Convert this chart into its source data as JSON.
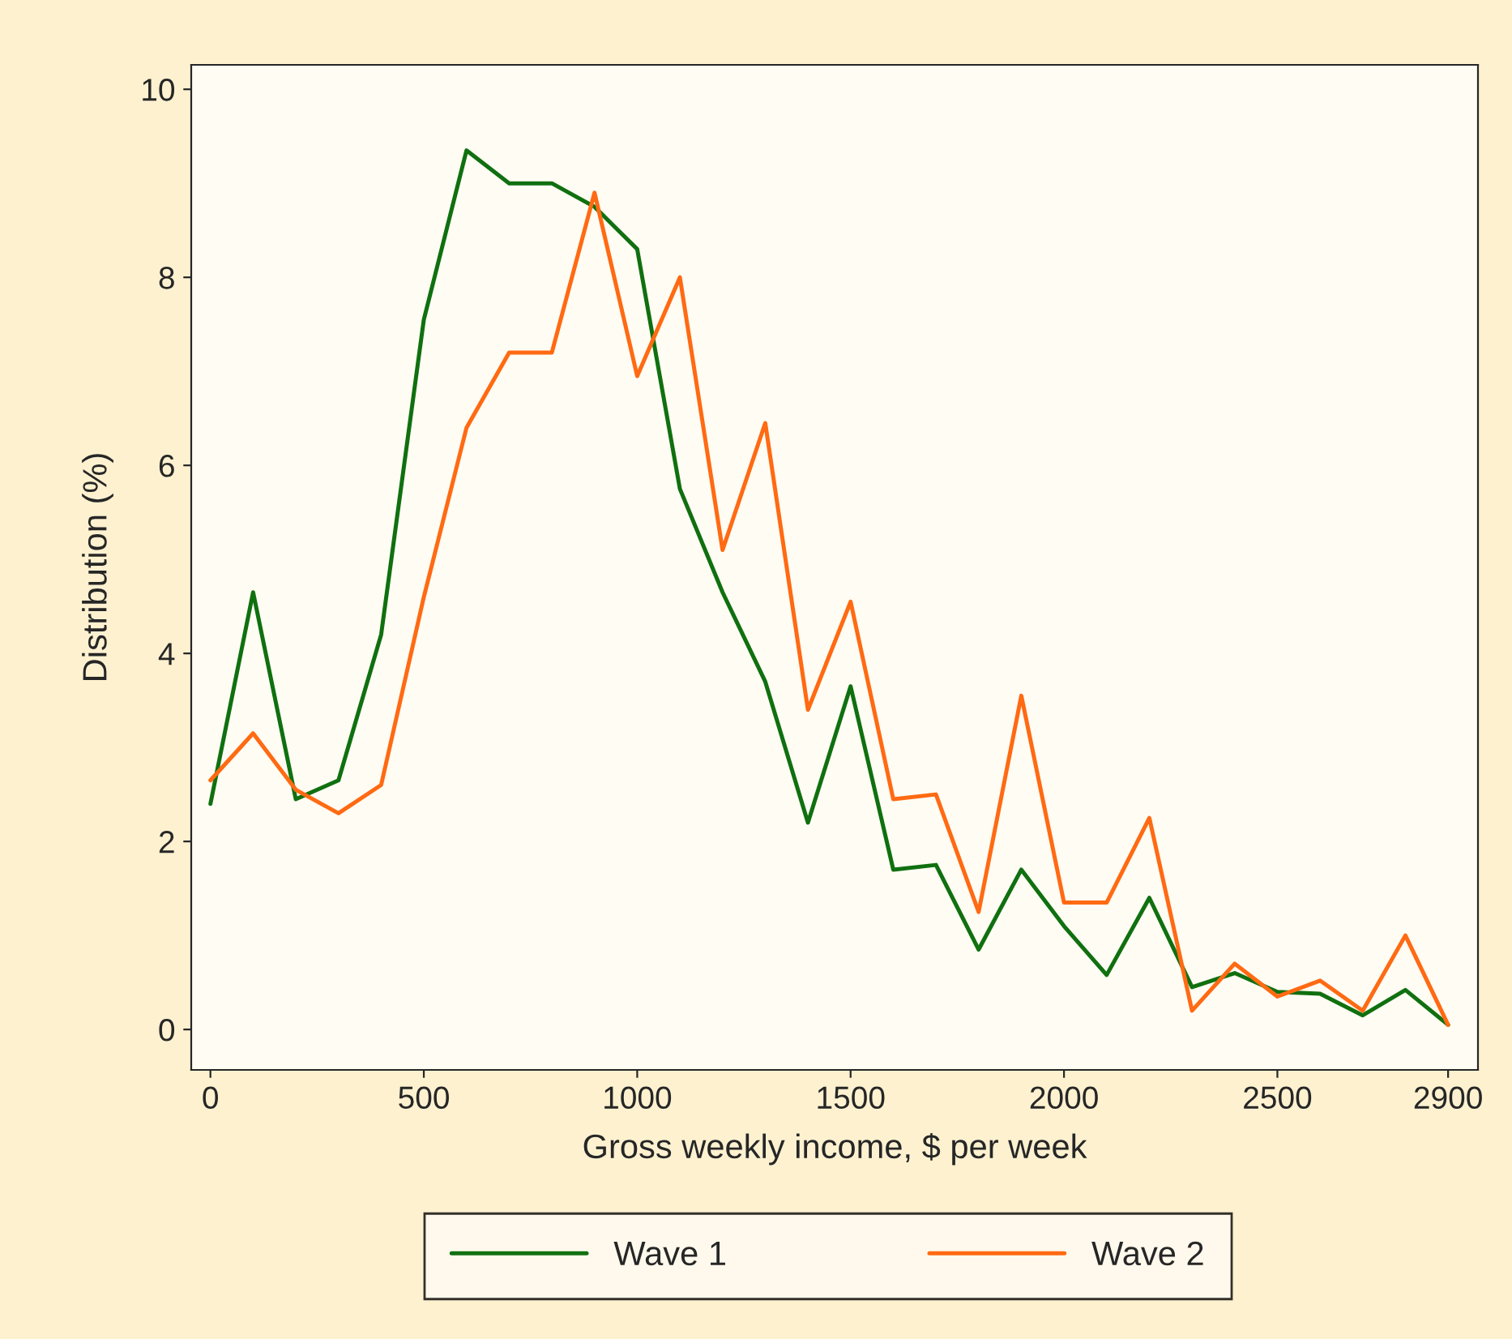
{
  "chart_data": {
    "type": "line",
    "xlabel": "Gross weekly income, $ per week",
    "ylabel": "Distribution (%)",
    "x": [
      0,
      100,
      200,
      300,
      400,
      500,
      600,
      700,
      800,
      900,
      1000,
      1100,
      1200,
      1300,
      1400,
      1500,
      1600,
      1700,
      1800,
      1900,
      2000,
      2100,
      2200,
      2300,
      2400,
      2500,
      2600,
      2700,
      2800,
      2900
    ],
    "series": [
      {
        "name": "Wave 1",
        "color": "#107010",
        "values": [
          2.4,
          4.65,
          2.45,
          2.65,
          4.2,
          7.55,
          9.35,
          9.0,
          9.0,
          8.75,
          8.3,
          5.75,
          4.65,
          3.7,
          2.2,
          3.65,
          1.7,
          1.75,
          0.85,
          1.7,
          1.1,
          0.58,
          1.4,
          0.45,
          0.6,
          0.4,
          0.38,
          0.15,
          0.42,
          0.05
        ]
      },
      {
        "name": "Wave 2",
        "color": "#ff6a13",
        "values": [
          2.65,
          3.15,
          2.55,
          2.3,
          2.6,
          4.6,
          6.4,
          7.2,
          7.2,
          8.9,
          6.95,
          8.0,
          5.1,
          6.45,
          3.4,
          4.55,
          2.45,
          2.5,
          1.25,
          3.55,
          1.35,
          1.35,
          2.25,
          0.2,
          0.7,
          0.35,
          0.52,
          0.2,
          1.0,
          0.05
        ]
      }
    ],
    "xlim": [
      -45,
      2970
    ],
    "ylim": [
      -0.43,
      10.26
    ],
    "xticks": [
      0,
      500,
      1000,
      1500,
      2000,
      2500,
      2900
    ],
    "yticks": [
      0,
      2,
      4,
      6,
      8,
      10
    ],
    "grid": false,
    "legend": "bottom",
    "marker": "none",
    "line_style": "solid"
  }
}
